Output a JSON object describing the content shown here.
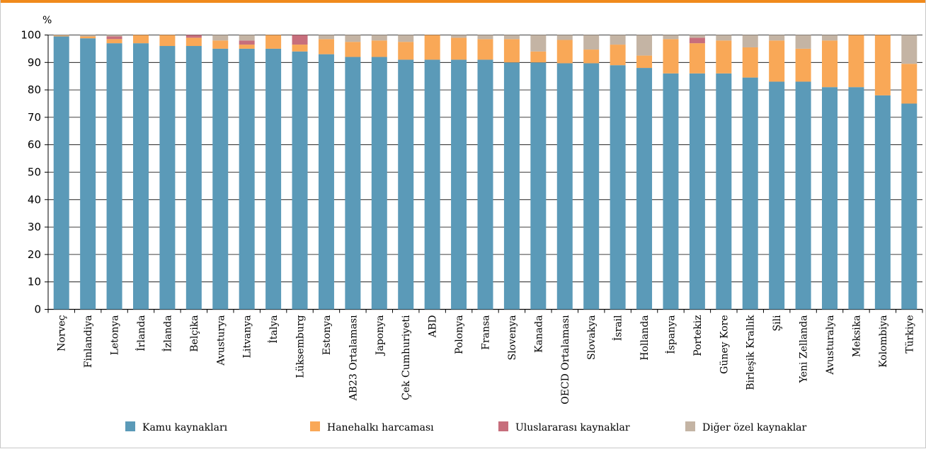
{
  "colors": {
    "accent_bar": "#f08a1c",
    "series": [
      "#5b9ab8",
      "#f9a857",
      "#c76e7c",
      "#c4b4a4"
    ],
    "grid": "#000000"
  },
  "chart_data": {
    "type": "bar",
    "stacked": true,
    "title": "",
    "unit_label": "%",
    "ylim": [
      0,
      100
    ],
    "yticks": [
      0,
      10,
      20,
      30,
      40,
      50,
      60,
      70,
      80,
      90,
      100
    ],
    "grid": true,
    "legend_position": "bottom",
    "categories": [
      "Norveç",
      "Finlandiya",
      "Letonya",
      "İrlanda",
      "İzlanda",
      "Belçika",
      "Avusturya",
      "Litvanya",
      "İtalya",
      "Lüksemburg",
      "Estonya",
      "AB23 Ortalaması",
      "Japonya",
      "Çek Cumhuriyeti",
      "ABD",
      "Polonya",
      "Fransa",
      "Slovenya",
      "Kanada",
      "OECD Ortalaması",
      "Slovakya",
      "İsrail",
      "Hollanda",
      "İspanya",
      "Portekiz",
      "Güney Kore",
      "Birleşik Krallık",
      "Şili",
      "Yeni Zellanda",
      "Avusturalya",
      "Meksika",
      "Kolombiya",
      "Türkiye"
    ],
    "series": [
      {
        "name": "Kamu kaynakları",
        "values": [
          99.5,
          98.8,
          97,
          97,
          96,
          96,
          95,
          95,
          95,
          94,
          93,
          92,
          92,
          91,
          91,
          91,
          91,
          90,
          90,
          89.7,
          89.7,
          89,
          88,
          86,
          86,
          86,
          84.5,
          83,
          83,
          81,
          81,
          78,
          75
        ]
      },
      {
        "name": "Hanehalkı harcaması",
        "values": [
          0.3,
          0.7,
          1.5,
          3,
          4,
          3,
          3,
          1.5,
          5,
          2.5,
          5.5,
          5.5,
          6,
          6.5,
          9,
          8,
          7.5,
          8.5,
          4,
          8.5,
          5,
          7.5,
          4.5,
          12.5,
          11,
          12,
          11,
          15,
          12,
          17,
          19,
          22,
          14.5
        ]
      },
      {
        "name": "Uluslararası kaynaklar",
        "values": [
          0,
          0,
          1,
          0,
          0,
          1,
          0,
          1.5,
          0,
          3.5,
          0,
          0,
          0,
          0,
          0,
          0,
          0,
          0,
          0,
          0,
          0,
          0,
          0,
          0,
          2,
          0,
          0,
          0,
          0,
          0,
          0,
          0,
          0
        ]
      },
      {
        "name": "Diğer özel kaynaklar",
        "values": [
          0.2,
          0.5,
          0.5,
          0,
          0,
          0,
          2,
          2,
          0,
          0,
          1.5,
          2.5,
          2,
          2.5,
          0,
          1,
          1.5,
          1.5,
          6,
          1.8,
          5.3,
          3.5,
          7.5,
          1.5,
          1,
          2,
          4.5,
          2,
          5,
          2,
          0,
          0,
          10.5
        ]
      }
    ]
  }
}
